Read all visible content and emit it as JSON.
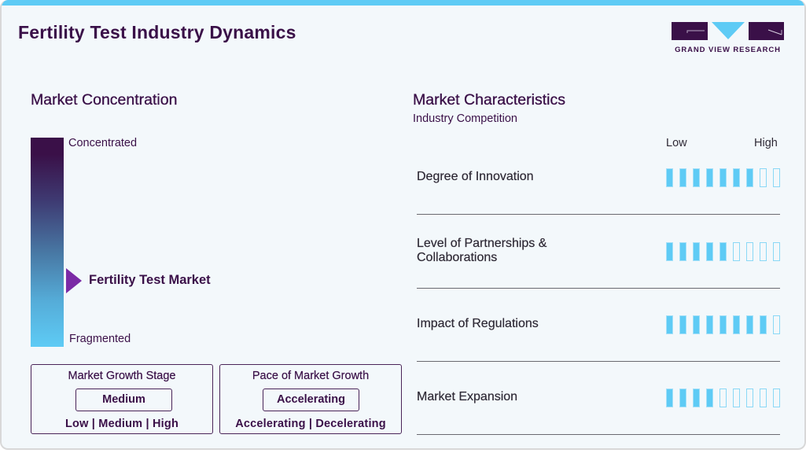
{
  "header": {
    "title": "Fertility Test Industry Dynamics",
    "logo_text": "GRAND VIEW RESEARCH"
  },
  "colors": {
    "accent_cyan": "#5ecbf5",
    "brand_purple": "#3a1048",
    "pointer_purple": "#7b2aa6"
  },
  "market_concentration": {
    "title": "Market Concentration",
    "top_label": "Concentrated",
    "bottom_label": "Fragmented",
    "market_label": "Fertility Test Market"
  },
  "growth_stage": {
    "title": "Market Growth Stage",
    "value": "Medium",
    "options": "Low | Medium | High"
  },
  "growth_pace": {
    "title": "Pace of Market Growth",
    "value": "Accelerating",
    "options": "Accelerating | Decelerating"
  },
  "characteristics": {
    "title": "Market Characteristics",
    "subtitle": "Industry Competition",
    "scale_low": "Low",
    "scale_high": "High",
    "rows": [
      {
        "label": "Degree of Innovation",
        "filled": 7,
        "total": 9
      },
      {
        "label": "Level of Partnerships & Collaborations",
        "filled": 5,
        "total": 9
      },
      {
        "label": "Impact of Regulations",
        "filled": 8,
        "total": 9
      },
      {
        "label": "Market Expansion",
        "filled": 4,
        "total": 9
      }
    ]
  },
  "chart_data": {
    "type": "bar",
    "title": "Market Characteristics - Industry Competition",
    "categories": [
      "Degree of Innovation",
      "Level of Partnerships & Collaborations",
      "Impact of Regulations",
      "Market Expansion"
    ],
    "values": [
      7,
      5,
      8,
      4
    ],
    "max": 9,
    "xlabel": "",
    "ylabel": "Low to High",
    "ylim": [
      0,
      9
    ]
  }
}
